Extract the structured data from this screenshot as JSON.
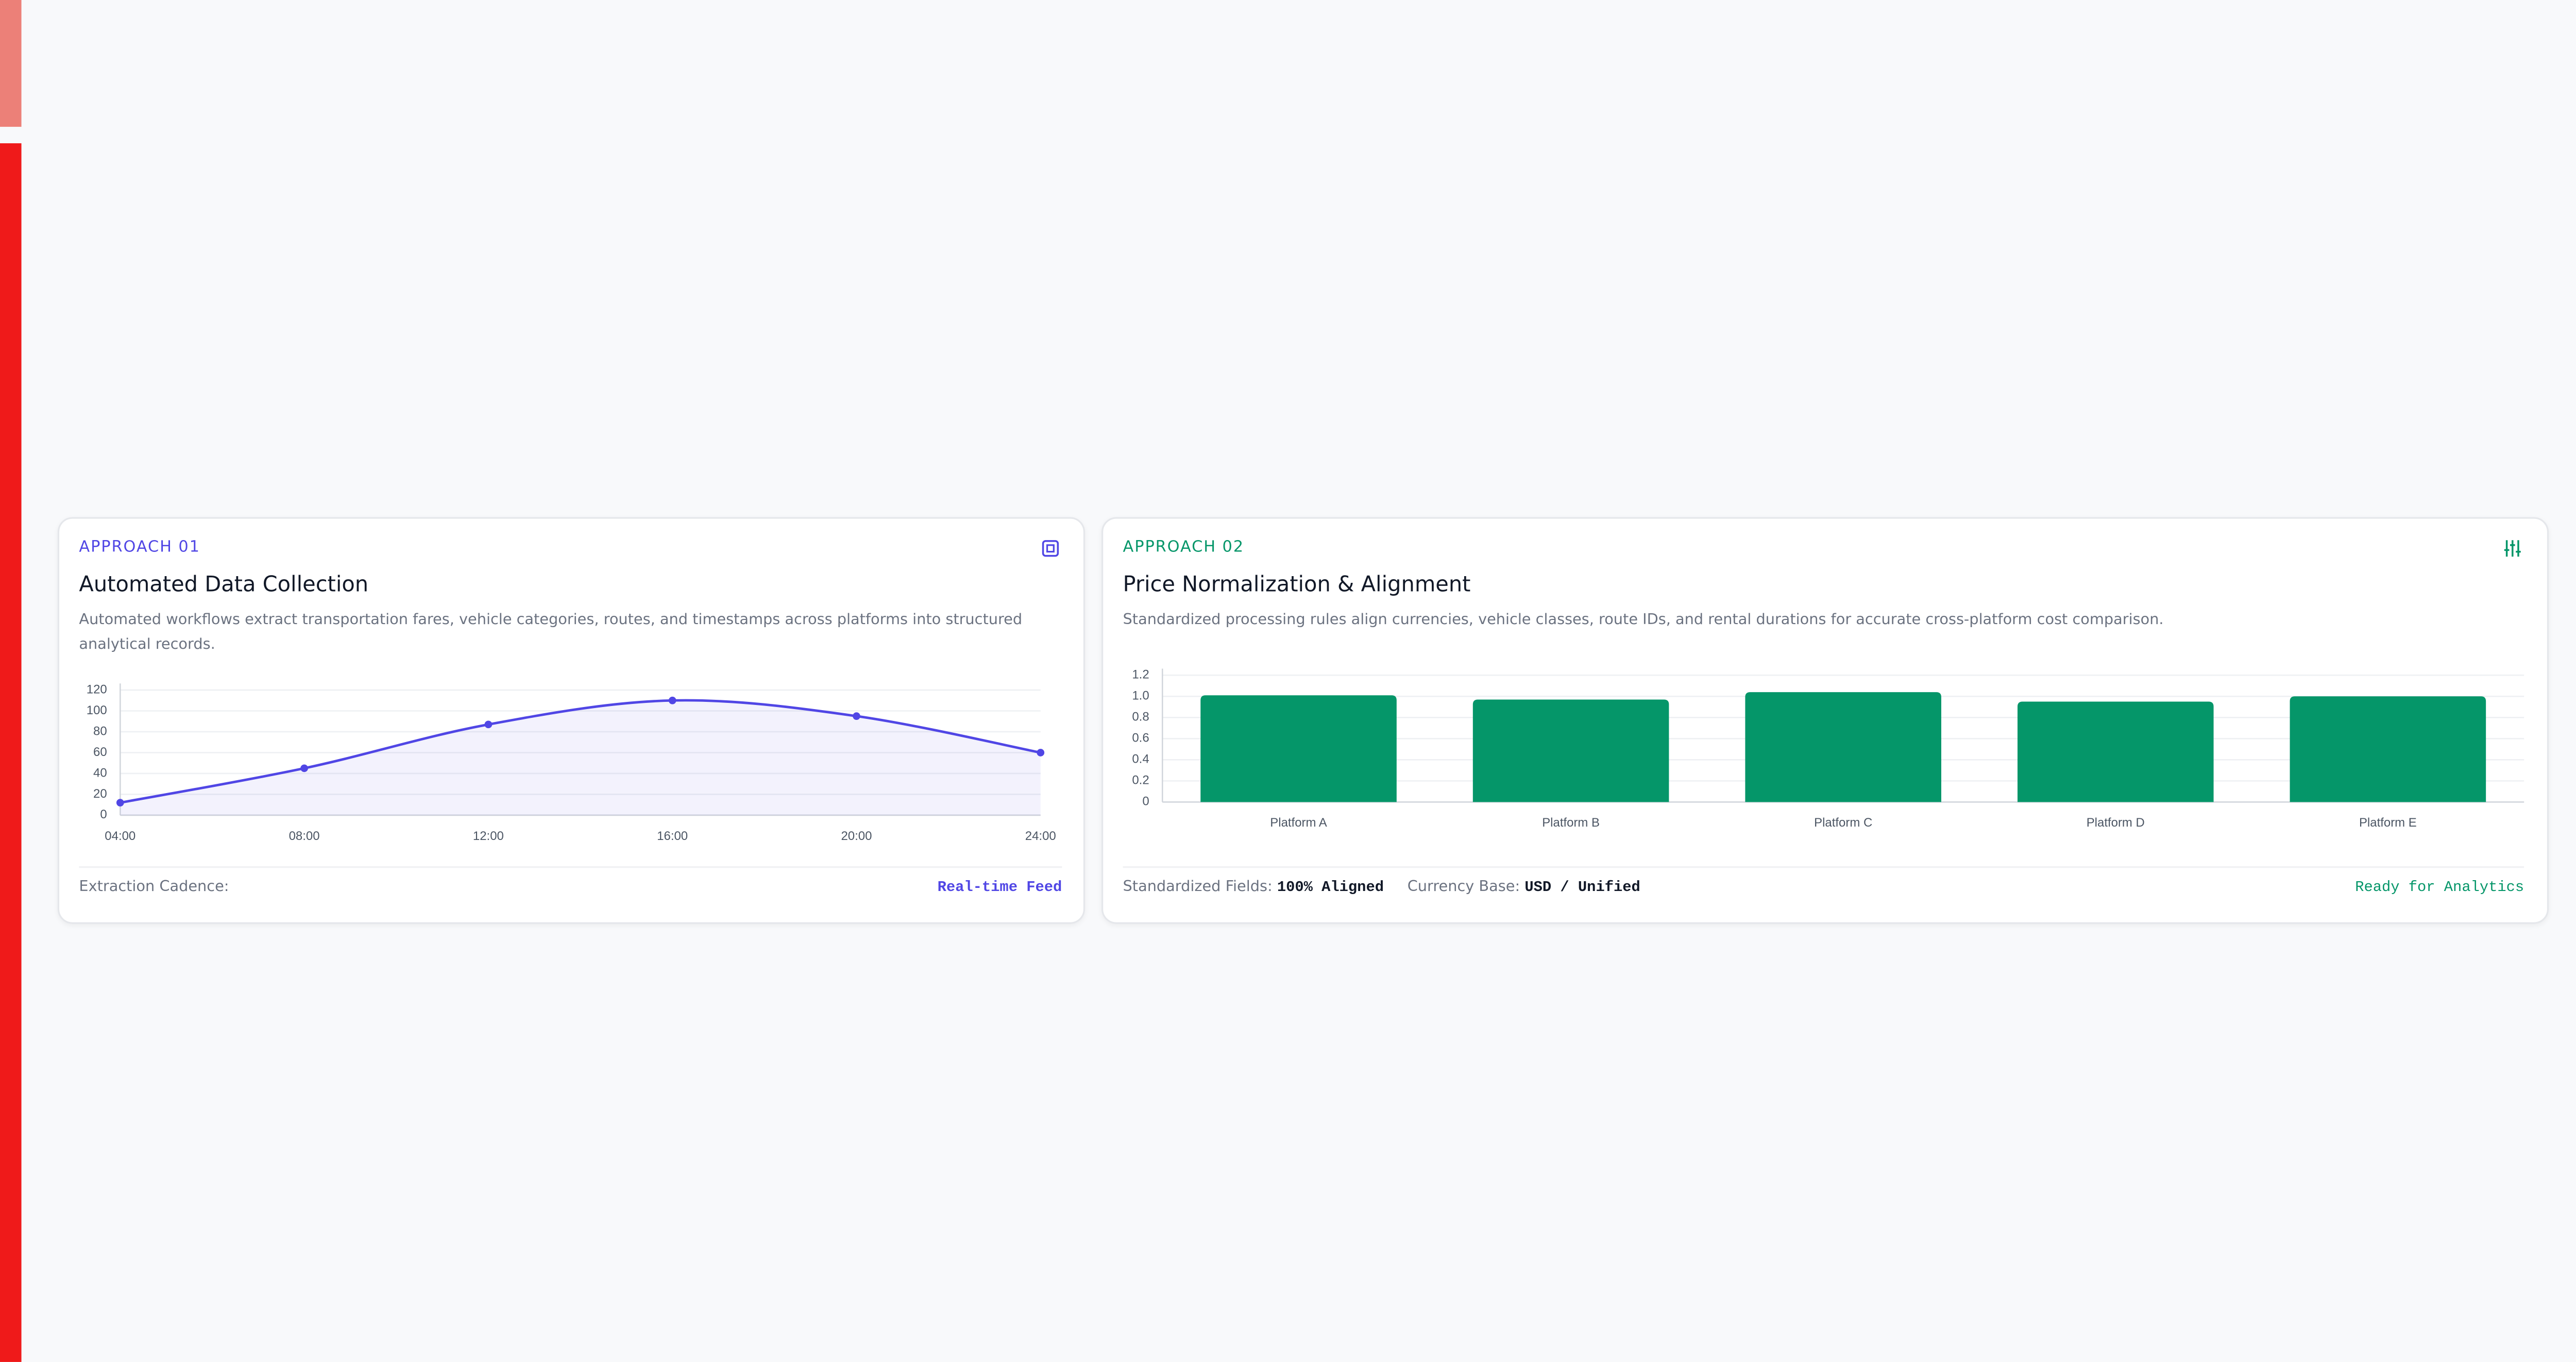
{
  "cards": [
    {
      "eyebrow": "APPROACH 01",
      "title": "Automated Data Collection",
      "description": "Automated workflows extract transportation fares, vehicle categories, routes, and timestamps across platforms into structured analytical records.",
      "footer": {
        "label": "Extraction Cadence:",
        "status": "Real-time Feed"
      }
    },
    {
      "eyebrow": "APPROACH 02",
      "title": "Price Normalization & Alignment",
      "description": "Standardized processing rules align currencies, vehicle classes, route IDs, and rental durations for accurate cross-platform cost comparison.",
      "footer": {
        "fields_label": "Standardized Fields:",
        "fields_value": "100% Aligned",
        "currency_label": "Currency Base:",
        "currency_value": "USD / Unified",
        "status": "Ready for Analytics"
      }
    }
  ],
  "chart_data": [
    {
      "type": "line",
      "categories": [
        "04:00",
        "08:00",
        "12:00",
        "16:00",
        "20:00",
        "24:00"
      ],
      "values": [
        12,
        45,
        87,
        110,
        95,
        60
      ],
      "color": "#5046e5",
      "area": true,
      "ylim": [
        0,
        120
      ],
      "yticks": [
        0,
        20,
        40,
        60,
        80,
        100,
        120
      ],
      "grid": true
    },
    {
      "type": "bar",
      "categories": [
        "Platform A",
        "Platform B",
        "Platform C",
        "Platform D",
        "Platform E"
      ],
      "values": [
        1.01,
        0.97,
        1.04,
        0.95,
        1.0
      ],
      "color": "#059669",
      "ylim": [
        0,
        1.2
      ],
      "yticks": [
        0,
        0.2,
        0.4,
        0.6,
        0.8,
        {
          "value": 1,
          "label": "1.0"
        },
        1.2
      ],
      "grid": true
    }
  ]
}
